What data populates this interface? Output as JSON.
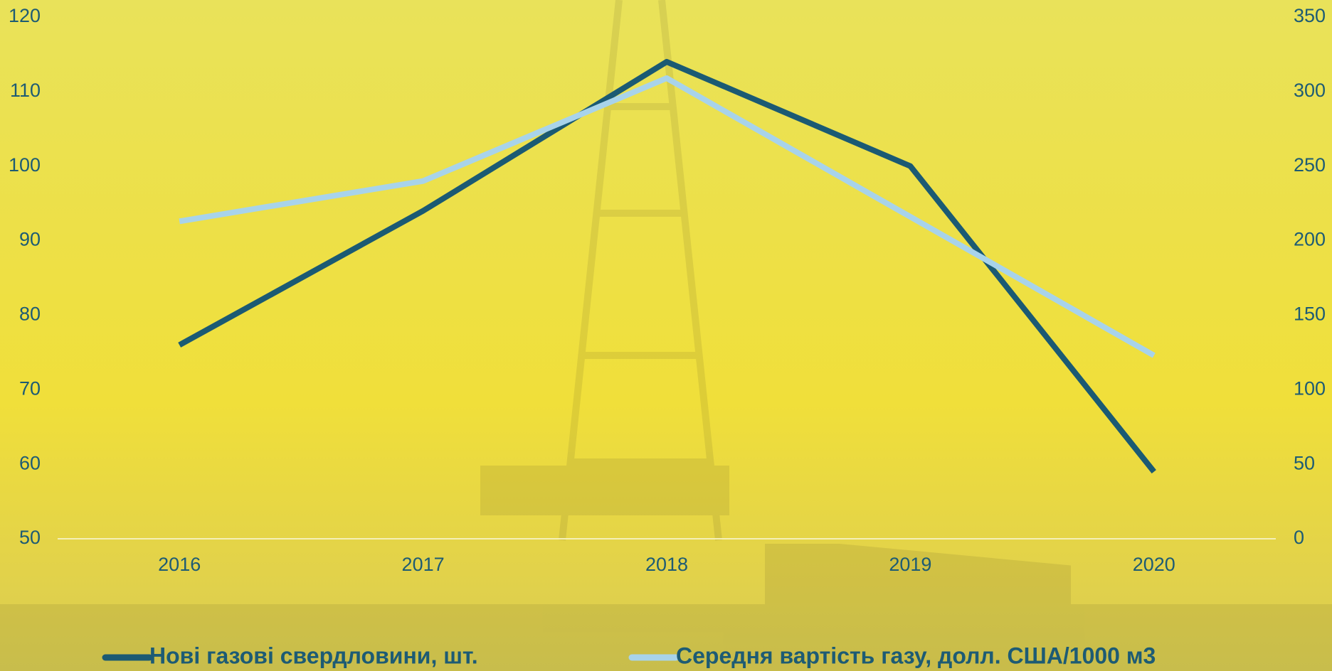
{
  "chart_data": {
    "type": "line",
    "categories": [
      "2016",
      "2017",
      "2018",
      "2019",
      "2020"
    ],
    "series": [
      {
        "name": "Нові газові свердловини, шт.",
        "color": "#1b5a73",
        "values": [
          76,
          94,
          114,
          100,
          59
        ]
      },
      {
        "name": "Середня вартість газу, долл. США/1000 м3",
        "color": "#a8d3ea",
        "axis": "y2",
        "values": [
          213,
          240,
          309,
          216,
          123
        ]
      }
    ],
    "ylim": [
      50,
      120
    ],
    "yticks": [
      50,
      60,
      70,
      80,
      90,
      100,
      110,
      120
    ],
    "y2lim": [
      0,
      350
    ],
    "y2ticks": [
      0,
      50,
      100,
      150,
      200,
      250,
      300,
      350
    ],
    "legend": "bottom"
  }
}
